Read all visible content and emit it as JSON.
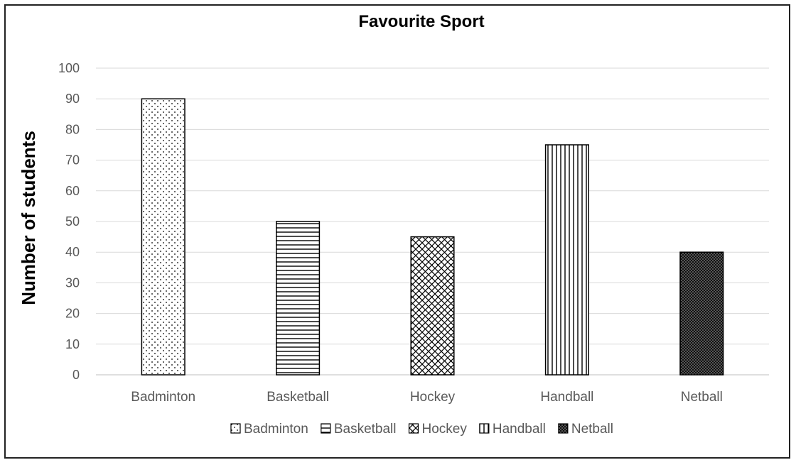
{
  "chart_data": {
    "type": "bar",
    "title": "Favourite Sport",
    "xlabel": "",
    "ylabel": "Number of students",
    "ylim": [
      0,
      100
    ],
    "yticks": [
      0,
      10,
      20,
      30,
      40,
      50,
      60,
      70,
      80,
      90,
      100
    ],
    "categories": [
      "Badminton",
      "Basketball",
      "Hockey",
      "Handball",
      "Netball"
    ],
    "values": [
      90,
      50,
      45,
      75,
      40
    ],
    "patterns": [
      "dots",
      "horizontal-lines",
      "crosshatch",
      "vertical-lines",
      "dense-dots"
    ],
    "grid": true,
    "legend": {
      "placement": "bottom",
      "entries": [
        "Badminton",
        "Basketball",
        "Hockey",
        "Handball",
        "Netball"
      ]
    },
    "colors": {
      "grid": "#d9d9d9",
      "bar_outline": "#000000",
      "text": "#595959"
    }
  }
}
